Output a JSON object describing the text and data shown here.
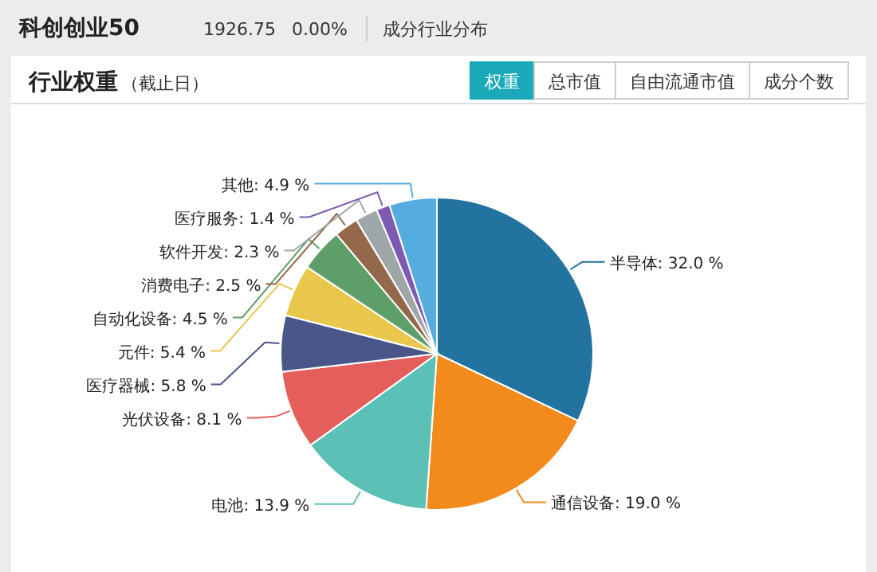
{
  "chart_data": {
    "type": "pie",
    "title": "行业权重",
    "subtitle": "（截止日）",
    "annotations": [
      "科创创业50",
      "1926.75",
      "0.00%",
      "成分行业分布",
      "权重",
      "总市值",
      "自由流通市值",
      "成分个数"
    ],
    "categories": [
      "半导体",
      "通信设备",
      "电池",
      "光伏设备",
      "医疗器械",
      "元件",
      "自动化设备",
      "消费电子",
      "软件开发",
      "医疗服务",
      "其他"
    ],
    "values": [
      32.0,
      19.0,
      13.9,
      8.1,
      5.8,
      5.4,
      4.5,
      2.5,
      2.3,
      1.4,
      4.9
    ],
    "value_labels": [
      "32.0 %",
      "19.0 %",
      "13.9 %",
      "8.1 %",
      "5.8 %",
      "5.4 %",
      "4.5 %",
      "2.5 %",
      "2.3 %",
      "1.4 %",
      "4.9 %"
    ],
    "colors": [
      "#22739f",
      "#f28a1c",
      "#5bc0b6",
      "#e45e5c",
      "#4a5689",
      "#e8c74c",
      "#5e9e68",
      "#93694a",
      "#9ea6a8",
      "#7d5bb0",
      "#55acdf"
    ]
  }
}
